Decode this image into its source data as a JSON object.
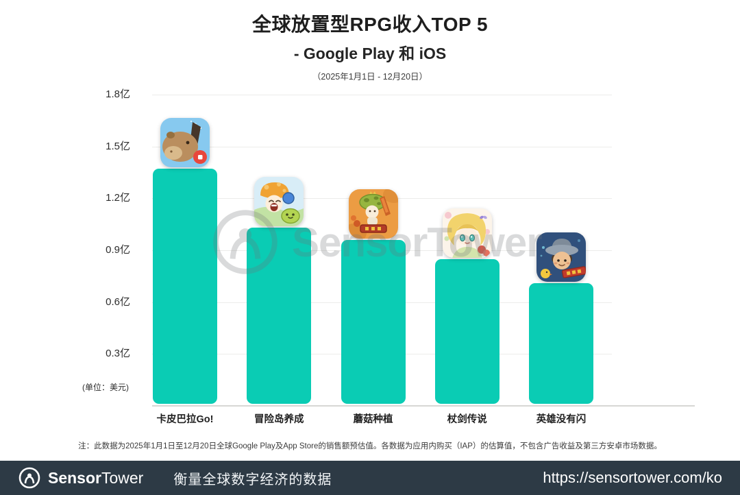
{
  "chart_data": {
    "type": "bar",
    "title": "全球放置型RPG收入TOP 5",
    "subtitle": "- Google Play 和 iOS",
    "date_range": "（2025年1月1日 - 12月20日）",
    "categories": [
      "卡皮巴拉Go!",
      "冒险岛养成",
      "蘑菇种植",
      "杖剑传说",
      "英雄没有闪"
    ],
    "values": [
      1.37,
      1.03,
      0.96,
      0.85,
      0.71
    ],
    "value_unit": "亿美元",
    "unit_label": "(单位：美元)",
    "ylim": [
      0,
      1.8
    ],
    "yticks": [
      0.3,
      0.6,
      0.9,
      1.2,
      1.5,
      1.8
    ],
    "ytick_labels": [
      "0.3亿",
      "0.6亿",
      "0.9亿",
      "1.2亿",
      "1.5亿",
      "1.8亿"
    ],
    "grid": true,
    "legend": false,
    "bar_color": "#0accb4",
    "icons": [
      "capybara-go-app-icon",
      "maplestory-idle-app-icon",
      "mushroom-planting-app-icon",
      "staff-sword-legend-app-icon",
      "hero-no-flash-app-icon"
    ]
  },
  "watermark": {
    "text": "SensorTower"
  },
  "note": "注：此数据为2025年1月1日至12月20日全球Google Play及App Store的销售额预估值。各数据为应用内购买（IAP）的估算值，不包含广告收益及第三方安卓市场数据。",
  "footer": {
    "brand_bold": "Sensor",
    "brand_regular": "Tower",
    "tagline": "衡量全球数字经济的数据",
    "url": "https://sensortower.com/ko",
    "background_color": "#2d3a45"
  }
}
